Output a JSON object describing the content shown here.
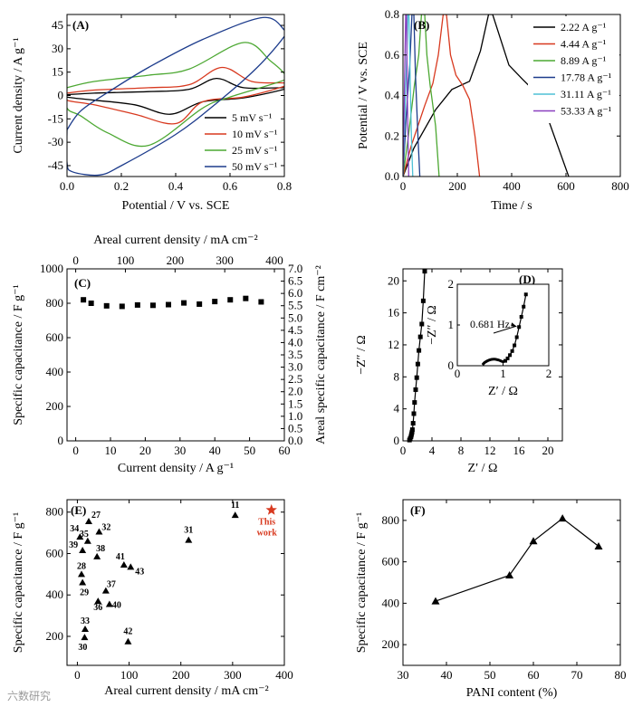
{
  "watermark": "六数研究",
  "chart_data": [
    {
      "panel": "(A)",
      "type": "line",
      "xlabel": "Potential / V vs. SCE",
      "ylabel": "Current density / A g⁻¹",
      "xlim": [
        0.0,
        0.8
      ],
      "ylim": [
        -52,
        52
      ],
      "xticks": [
        "0.0",
        "0.2",
        "0.4",
        "0.6",
        "0.8"
      ],
      "yticks": [
        "45",
        "30",
        "15",
        "0",
        "-15",
        "-30",
        "-45"
      ],
      "series": [
        {
          "name": "5 mV s⁻¹",
          "color": "#000000",
          "anodic": [
            [
              0,
              0.5
            ],
            [
              0.1,
              1.5
            ],
            [
              0.3,
              2.5
            ],
            [
              0.45,
              4
            ],
            [
              0.55,
              11
            ],
            [
              0.65,
              5
            ],
            [
              0.8,
              5
            ]
          ],
          "cathodic": [
            [
              0.8,
              4
            ],
            [
              0.65,
              -1.5
            ],
            [
              0.5,
              -4
            ],
            [
              0.38,
              -12
            ],
            [
              0.25,
              -6
            ],
            [
              0.1,
              -3
            ],
            [
              0,
              -1
            ]
          ]
        },
        {
          "name": "10 mV s⁻¹",
          "color": "#d8391f",
          "anodic": [
            [
              0,
              1.5
            ],
            [
              0.1,
              3.5
            ],
            [
              0.3,
              5
            ],
            [
              0.45,
              7
            ],
            [
              0.57,
              18
            ],
            [
              0.68,
              9
            ],
            [
              0.8,
              8
            ]
          ],
          "cathodic": [
            [
              0.8,
              6
            ],
            [
              0.65,
              -1
            ],
            [
              0.5,
              -4
            ],
            [
              0.4,
              -18
            ],
            [
              0.25,
              -12
            ],
            [
              0.1,
              -6
            ],
            [
              0,
              -3
            ]
          ]
        },
        {
          "name": "25 mV s⁻¹",
          "color": "#4ca832",
          "anodic": [
            [
              0,
              5
            ],
            [
              0.1,
              9
            ],
            [
              0.3,
              13
            ],
            [
              0.45,
              17
            ],
            [
              0.65,
              34
            ],
            [
              0.75,
              22
            ],
            [
              0.8,
              14
            ]
          ],
          "cathodic": [
            [
              0.8,
              10
            ],
            [
              0.6,
              -1
            ],
            [
              0.5,
              -8
            ],
            [
              0.3,
              -32
            ],
            [
              0.15,
              -24
            ],
            [
              0.05,
              -13
            ],
            [
              0,
              -8
            ]
          ]
        },
        {
          "name": "50 mV s⁻¹",
          "color": "#1d3c8c",
          "anodic": [
            [
              0,
              -22
            ],
            [
              0.05,
              -10
            ],
            [
              0.15,
              2
            ],
            [
              0.3,
              18
            ],
            [
              0.5,
              36
            ],
            [
              0.72,
              50
            ],
            [
              0.8,
              42
            ]
          ],
          "cathodic": [
            [
              0.8,
              38
            ],
            [
              0.7,
              18
            ],
            [
              0.55,
              -5
            ],
            [
              0.4,
              -25
            ],
            [
              0.2,
              -45
            ],
            [
              0.12,
              -51
            ],
            [
              0.02,
              -49
            ],
            [
              0,
              -43
            ]
          ]
        }
      ]
    },
    {
      "panel": "(B)",
      "type": "line",
      "xlabel": "Time / s",
      "ylabel": "Potential / V vs. SCE",
      "xlim": [
        0,
        800
      ],
      "ylim": [
        0.0,
        0.8
      ],
      "xticks": [
        "0",
        "200",
        "400",
        "600",
        "800"
      ],
      "yticks": [
        "0.0",
        "0.2",
        "0.4",
        "0.6",
        "0.8"
      ],
      "series": [
        {
          "name": "2.22 A g⁻¹",
          "color": "#000000",
          "points": [
            [
              0,
              0
            ],
            [
              40,
              0.14
            ],
            [
              120,
              0.33
            ],
            [
              180,
              0.43
            ],
            [
              245,
              0.47
            ],
            [
              285,
              0.62
            ],
            [
              315,
              0.8
            ],
            [
              330,
              0.8
            ],
            [
              390,
              0.55
            ],
            [
              440,
              0.48
            ],
            [
              485,
              0.42
            ],
            [
              530,
              0.3
            ],
            [
              610,
              0
            ]
          ]
        },
        {
          "name": "4.44 A g⁻¹",
          "color": "#d8391f",
          "points": [
            [
              0,
              0
            ],
            [
              30,
              0.15
            ],
            [
              80,
              0.35
            ],
            [
              110,
              0.46
            ],
            [
              130,
              0.6
            ],
            [
              148,
              0.8
            ],
            [
              160,
              0.8
            ],
            [
              175,
              0.6
            ],
            [
              195,
              0.5
            ],
            [
              220,
              0.45
            ],
            [
              245,
              0.38
            ],
            [
              265,
              0.2
            ],
            [
              282,
              0
            ]
          ]
        },
        {
          "name": "8.89 A g⁻¹",
          "color": "#4ca832",
          "points": [
            [
              0,
              0
            ],
            [
              20,
              0.2
            ],
            [
              42,
              0.45
            ],
            [
              58,
              0.6
            ],
            [
              68,
              0.8
            ],
            [
              80,
              0.8
            ],
            [
              88,
              0.6
            ],
            [
              100,
              0.45
            ],
            [
              120,
              0.25
            ],
            [
              133,
              0
            ]
          ]
        },
        {
          "name": "17.78 A g⁻¹",
          "color": "#1d3c8c",
          "points": [
            [
              0,
              0
            ],
            [
              12,
              0.3
            ],
            [
              25,
              0.55
            ],
            [
              33,
              0.8
            ],
            [
              40,
              0.8
            ],
            [
              46,
              0.5
            ],
            [
              55,
              0.2
            ],
            [
              62,
              0
            ]
          ]
        },
        {
          "name": "31.11 A g⁻¹",
          "color": "#4fc1d6",
          "points": [
            [
              0,
              0
            ],
            [
              8,
              0.35
            ],
            [
              14,
              0.6
            ],
            [
              18,
              0.8
            ],
            [
              22,
              0.8
            ],
            [
              27,
              0.45
            ],
            [
              31,
              0.2
            ],
            [
              36,
              0
            ]
          ]
        },
        {
          "name": "53.33 A g⁻¹",
          "color": "#8a3fbf",
          "points": [
            [
              0,
              0
            ],
            [
              5,
              0.4
            ],
            [
              10,
              0.8
            ],
            [
              13,
              0.8
            ],
            [
              16,
              0.4
            ],
            [
              21,
              0
            ]
          ]
        }
      ]
    },
    {
      "panel": "(C)",
      "type": "scatter",
      "xlabel": "Current density / A g⁻¹",
      "ylabel": "Specific capacitance / F g⁻¹",
      "ylabel_right": "Areal specific capacitance / F cm⁻²",
      "xlabel_top": "Areal current density / mA cm⁻²",
      "xlim": [
        -2.5,
        60
      ],
      "ylim": [
        0,
        1000
      ],
      "ylim_right": [
        0,
        7.0
      ],
      "xlim_top": [
        -17.5,
        420
      ],
      "xticks": [
        "0",
        "10",
        "20",
        "30",
        "40",
        "50",
        "60"
      ],
      "yticks": [
        "0",
        "200",
        "400",
        "600",
        "800",
        "1000"
      ],
      "yticks_right": [
        "0.0",
        "0.5",
        "1.0",
        "1.5",
        "2.0",
        "2.5",
        "3.0",
        "3.5",
        "4.0",
        "4.5",
        "5.0",
        "5.5",
        "6.0",
        "6.5",
        "7.0"
      ],
      "xticks_top": [
        "0",
        "100",
        "200",
        "300",
        "400"
      ],
      "x": [
        2.22,
        4.44,
        8.89,
        13.33,
        17.78,
        22.22,
        26.67,
        31.11,
        35.56,
        40,
        44.44,
        48.89,
        53.33
      ],
      "y": [
        820,
        800,
        785,
        782,
        790,
        788,
        792,
        802,
        795,
        810,
        820,
        828,
        808
      ]
    },
    {
      "panel": "(D)",
      "type": "scatter",
      "xlabel": "Z′ / Ω",
      "ylabel": "−Z″ / Ω",
      "xlim": [
        0,
        22
      ],
      "ylim": [
        0,
        21.5
      ],
      "xticks": [
        "0",
        "4",
        "8",
        "12",
        "16",
        "20"
      ],
      "yticks": [
        "0",
        "4",
        "8",
        "12",
        "16",
        "20"
      ],
      "x": [
        0.9,
        1.0,
        1.1,
        1.15,
        1.2,
        1.25,
        1.3,
        1.4,
        1.5,
        1.6,
        1.75,
        1.9,
        2.05,
        2.2,
        2.4,
        2.6,
        2.8,
        3.0
      ],
      "y": [
        0.1,
        0.3,
        0.5,
        0.7,
        0.9,
        1.1,
        1.4,
        2.2,
        3.4,
        4.8,
        6.4,
        7.9,
        9.6,
        11.3,
        13.0,
        14.6,
        17.5,
        21.2
      ],
      "inset": {
        "xlabel": "Z′ / Ω",
        "ylabel": "−Z″ / Ω",
        "xlim": [
          0,
          2
        ],
        "ylim": [
          0,
          2
        ],
        "xticks": [
          "0",
          "1",
          "2"
        ],
        "yticks": [
          "0",
          "1",
          "2"
        ],
        "annotation": "0.681 Hz",
        "x": [
          1.05,
          1.1,
          1.15,
          1.2,
          1.25,
          1.3,
          1.35,
          1.4,
          1.45,
          1.5
        ],
        "y": [
          0.12,
          0.18,
          0.26,
          0.36,
          0.5,
          0.7,
          0.95,
          1.2,
          1.45,
          1.75
        ],
        "arc_x": [
          0.55,
          0.6,
          0.7,
          0.8,
          0.9,
          1.0,
          1.05
        ],
        "arc_y": [
          0.02,
          0.08,
          0.14,
          0.16,
          0.14,
          0.1,
          0.12
        ]
      }
    },
    {
      "panel": "(E)",
      "type": "scatter",
      "xlabel": "Areal current density / mA cm⁻²",
      "ylabel": "Specific capacitance / F g⁻¹",
      "xlim": [
        -20,
        400
      ],
      "ylim": [
        60,
        860
      ],
      "xticks": [
        "0",
        "100",
        "200",
        "300",
        "400"
      ],
      "yticks": [
        "200",
        "400",
        "600",
        "800"
      ],
      "points": [
        {
          "label": "34",
          "x": 5,
          "y": 680
        },
        {
          "label": "27",
          "x": 22,
          "y": 755
        },
        {
          "label": "32",
          "x": 42,
          "y": 705
        },
        {
          "label": "35",
          "x": 20,
          "y": 660
        },
        {
          "label": "39",
          "x": 10,
          "y": 615
        },
        {
          "label": "38",
          "x": 38,
          "y": 585
        },
        {
          "label": "28",
          "x": 8,
          "y": 500
        },
        {
          "label": "29",
          "x": 10,
          "y": 460
        },
        {
          "label": "41",
          "x": 90,
          "y": 545
        },
        {
          "label": "43",
          "x": 103,
          "y": 535
        },
        {
          "label": "37",
          "x": 55,
          "y": 420
        },
        {
          "label": "36",
          "x": 40,
          "y": 370
        },
        {
          "label": "40",
          "x": 62,
          "y": 355
        },
        {
          "label": "33",
          "x": 15,
          "y": 235
        },
        {
          "label": "30",
          "x": 14,
          "y": 195
        },
        {
          "label": "42",
          "x": 98,
          "y": 175
        },
        {
          "label": "31",
          "x": 215,
          "y": 665
        },
        {
          "label": "11",
          "x": 305,
          "y": 785
        }
      ],
      "this_work": {
        "label": "This work",
        "x": 375,
        "y": 810,
        "color": "#d8391f"
      }
    },
    {
      "panel": "(F)",
      "type": "line",
      "xlabel": "PANI content (%)",
      "ylabel": "Specific capacitance / F g⁻¹",
      "xlim": [
        30,
        80
      ],
      "ylim": [
        100,
        900
      ],
      "xticks": [
        "30",
        "40",
        "50",
        "60",
        "70",
        "80"
      ],
      "yticks": [
        "200",
        "400",
        "600",
        "800"
      ],
      "x": [
        37.5,
        54.5,
        60,
        66.7,
        75
      ],
      "y": [
        410,
        535,
        700,
        810,
        675
      ]
    }
  ]
}
